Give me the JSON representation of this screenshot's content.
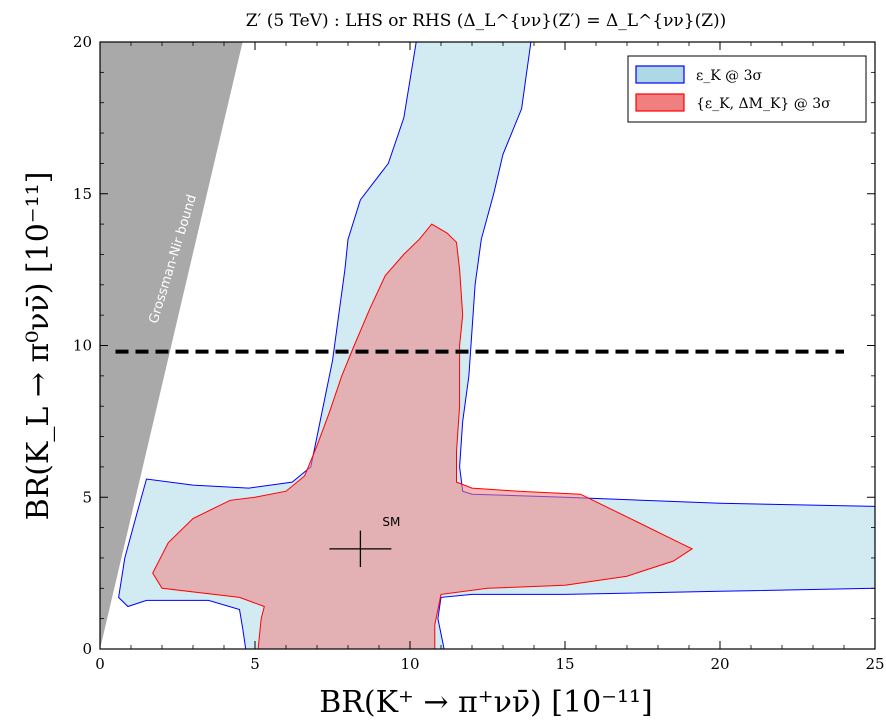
{
  "chart_data": {
    "type": "area",
    "title": "Z′ (5 TeV) : LHS or RHS (Δ_L^{νν}(Z′) = Δ_L^{νν}(Z))",
    "xlabel": "BR(K⁺ → π⁺νν̄) [10⁻¹¹]",
    "ylabel": "BR(K_L → π⁰νν̄) [10⁻¹¹]",
    "xlim": [
      0,
      25
    ],
    "ylim": [
      0,
      20
    ],
    "x_ticks": [
      0,
      5,
      10,
      15,
      20,
      25
    ],
    "y_ticks": [
      0,
      5,
      10,
      15,
      20
    ],
    "grid": false,
    "legend_position": "top-right",
    "legend": [
      {
        "label": "ε_K @ 3σ",
        "fill": "#add8e6",
        "edge": "#0000ff"
      },
      {
        "label": "{ε_K, ΔM_K} @ 3σ",
        "fill": "#f08080",
        "edge": "#ff0000"
      }
    ],
    "regions": [
      {
        "name": "ε_K @ 3σ",
        "fill": "#add8e6",
        "edge": "#0000ff",
        "polygon": [
          [
            10.2,
            20.0
          ],
          [
            9.8,
            17.5
          ],
          [
            9.3,
            16.0
          ],
          [
            8.4,
            14.8
          ],
          [
            8.0,
            13.5
          ],
          [
            7.9,
            12.5
          ],
          [
            7.7,
            11.0
          ],
          [
            7.5,
            9.5
          ],
          [
            7.3,
            8.5
          ],
          [
            7.0,
            7.0
          ],
          [
            6.8,
            6.0
          ],
          [
            6.2,
            5.5
          ],
          [
            4.8,
            5.3
          ],
          [
            3.0,
            5.4
          ],
          [
            1.5,
            5.6
          ],
          [
            1.2,
            4.5
          ],
          [
            0.8,
            3.0
          ],
          [
            0.6,
            1.7
          ],
          [
            0.9,
            1.4
          ],
          [
            1.5,
            1.6
          ],
          [
            3.5,
            1.6
          ],
          [
            4.5,
            1.3
          ],
          [
            4.6,
            0.7
          ],
          [
            4.7,
            0.0
          ],
          [
            11.1,
            0.0
          ],
          [
            10.9,
            1.0
          ],
          [
            11.0,
            1.7
          ],
          [
            12.0,
            1.8
          ],
          [
            15.0,
            1.8
          ],
          [
            20.0,
            1.9
          ],
          [
            25.0,
            2.0
          ],
          [
            25.0,
            4.7
          ],
          [
            20.0,
            4.8
          ],
          [
            15.0,
            5.0
          ],
          [
            12.0,
            5.1
          ],
          [
            11.7,
            5.2
          ],
          [
            11.6,
            6.0
          ],
          [
            11.7,
            7.5
          ],
          [
            11.9,
            9.0
          ],
          [
            12.0,
            10.5
          ],
          [
            12.1,
            12.0
          ],
          [
            12.3,
            13.5
          ],
          [
            12.7,
            15.0
          ],
          [
            13.0,
            16.3
          ],
          [
            13.6,
            17.8
          ],
          [
            13.9,
            20.0
          ]
        ]
      },
      {
        "name": "{ε_K, ΔM_K} @ 3σ",
        "fill": "#f08080",
        "edge": "#ff0000",
        "polygon": [
          [
            10.7,
            14.0
          ],
          [
            11.2,
            13.7
          ],
          [
            11.5,
            13.4
          ],
          [
            11.6,
            12.5
          ],
          [
            11.7,
            11.0
          ],
          [
            11.6,
            10.0
          ],
          [
            11.6,
            8.0
          ],
          [
            11.5,
            6.5
          ],
          [
            11.5,
            5.5
          ],
          [
            12.0,
            5.3
          ],
          [
            13.5,
            5.2
          ],
          [
            15.5,
            5.1
          ],
          [
            17.3,
            4.2
          ],
          [
            18.7,
            3.5
          ],
          [
            19.1,
            3.3
          ],
          [
            18.5,
            2.9
          ],
          [
            17.0,
            2.4
          ],
          [
            15.0,
            2.1
          ],
          [
            12.5,
            2.0
          ],
          [
            11.0,
            1.8
          ],
          [
            10.8,
            0.8
          ],
          [
            10.8,
            0.0
          ],
          [
            5.1,
            0.0
          ],
          [
            5.2,
            1.0
          ],
          [
            5.3,
            1.4
          ],
          [
            4.5,
            1.7
          ],
          [
            2.0,
            2.0
          ],
          [
            1.7,
            2.5
          ],
          [
            2.2,
            3.5
          ],
          [
            3.0,
            4.3
          ],
          [
            4.2,
            4.9
          ],
          [
            5.0,
            5.0
          ],
          [
            6.0,
            5.2
          ],
          [
            6.6,
            5.7
          ],
          [
            7.0,
            6.7
          ],
          [
            7.4,
            7.8
          ],
          [
            7.8,
            9.0
          ],
          [
            8.2,
            10.0
          ],
          [
            8.7,
            11.2
          ],
          [
            9.2,
            12.3
          ],
          [
            9.8,
            13.0
          ],
          [
            10.3,
            13.5
          ]
        ]
      }
    ],
    "grossman_nir": {
      "label": "Grossman-Nir bound",
      "fill": "#a9a9a9",
      "polygon": [
        [
          0,
          0
        ],
        [
          0,
          20
        ],
        [
          4.6,
          20
        ]
      ]
    },
    "measurement_line": {
      "y": 9.8,
      "x_from": 0.5,
      "x_to": 24,
      "style": "dashed",
      "color": "#000000"
    },
    "sm_point": {
      "label": "SM",
      "x": 8.4,
      "y": 3.3,
      "x_err": 1.0,
      "y_err": 0.6
    }
  }
}
